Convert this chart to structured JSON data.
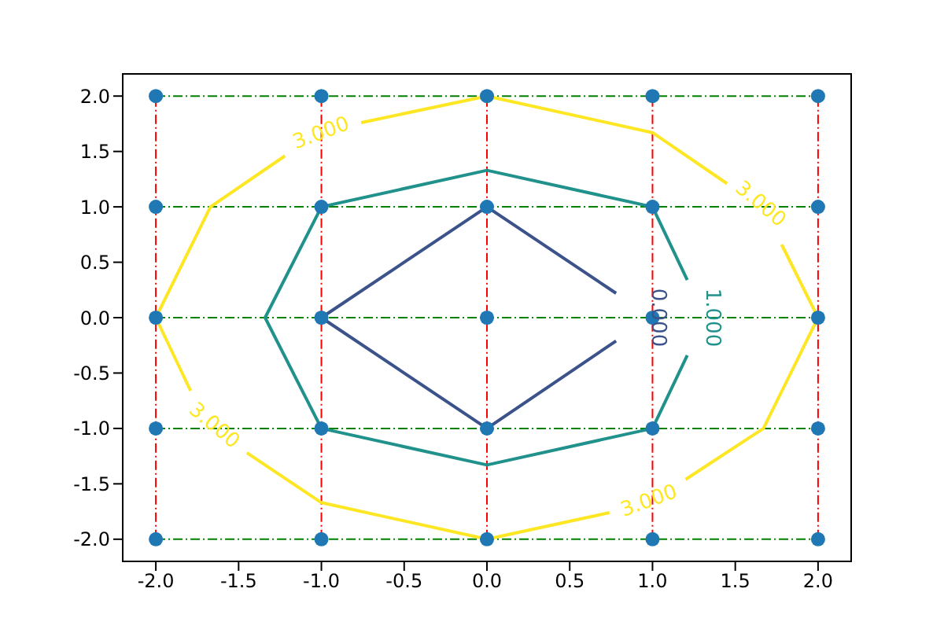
{
  "chart_data": {
    "type": "line",
    "xlim": [
      -2.2,
      2.2
    ],
    "ylim": [
      -2.2,
      2.2
    ],
    "xticks": [
      {
        "value": -2,
        "label": "-2.0"
      },
      {
        "value": -1.5,
        "label": "-1.5"
      },
      {
        "value": -1,
        "label": "-1.0"
      },
      {
        "value": -0.5,
        "label": "-0.5"
      },
      {
        "value": 0,
        "label": "0.0"
      },
      {
        "value": 0.5,
        "label": "0.5"
      },
      {
        "value": 1,
        "label": "1.0"
      },
      {
        "value": 1.5,
        "label": "1.5"
      },
      {
        "value": 2,
        "label": "2.0"
      }
    ],
    "yticks": [
      {
        "value": -2,
        "label": "-2.0"
      },
      {
        "value": -1.5,
        "label": "-1.5"
      },
      {
        "value": -1,
        "label": "-1.0"
      },
      {
        "value": -0.5,
        "label": "-0.5"
      },
      {
        "value": 0,
        "label": "0.0"
      },
      {
        "value": 0.5,
        "label": "0.5"
      },
      {
        "value": 1,
        "label": "1.0"
      },
      {
        "value": 1.5,
        "label": "1.5"
      },
      {
        "value": 2,
        "label": "2.0"
      }
    ],
    "series": [
      {
        "color": "#ff0000",
        "line_style": "dashed",
        "x": [
          -2,
          -2
        ],
        "values": [
          -2,
          2
        ]
      },
      {
        "color": "#ff0000",
        "line_style": "dashed",
        "x": [
          -1,
          -1
        ],
        "values": [
          -2,
          2
        ]
      },
      {
        "color": "#ff0000",
        "line_style": "dashed",
        "x": [
          0,
          0
        ],
        "values": [
          -2,
          2
        ]
      },
      {
        "color": "#ff0000",
        "line_style": "dashed",
        "x": [
          1,
          1
        ],
        "values": [
          -2,
          2
        ]
      },
      {
        "color": "#ff0000",
        "line_style": "dashed",
        "x": [
          2,
          2
        ],
        "values": [
          -2,
          2
        ]
      },
      {
        "color": "#008000",
        "line_style": "dashed",
        "x": [
          -2,
          2
        ],
        "values": [
          -2,
          -2
        ]
      },
      {
        "color": "#008000",
        "line_style": "dashed",
        "x": [
          -2,
          2
        ],
        "values": [
          -1,
          -1
        ]
      },
      {
        "color": "#008000",
        "line_style": "dashed",
        "x": [
          -2,
          2
        ],
        "values": [
          0,
          0
        ]
      },
      {
        "color": "#008000",
        "line_style": "dashed",
        "x": [
          -2,
          2
        ],
        "values": [
          1,
          1
        ]
      },
      {
        "color": "#008000",
        "line_style": "dashed",
        "x": [
          -2,
          2
        ],
        "values": [
          2,
          2
        ]
      },
      {
        "color": "#3b528b",
        "x": [
          0.78,
          0,
          -1,
          0,
          0.78
        ],
        "values": [
          0.22,
          1,
          0,
          -1,
          -0.21
        ]
      },
      {
        "color": "#21918c",
        "x": [
          1.21,
          1,
          0,
          -1,
          -1.34,
          -1,
          0,
          1,
          1.21
        ],
        "values": [
          0.34,
          1,
          1.33,
          1,
          0,
          -1,
          -1.33,
          -1,
          -0.34
        ]
      },
      {
        "color": "#fde725",
        "x": [
          -1.22,
          -1.67,
          -2,
          -1.79
        ],
        "values": [
          1.46,
          1,
          0,
          -0.66
        ]
      },
      {
        "color": "#fde725",
        "x": [
          -0.76,
          0,
          1,
          1.45
        ],
        "values": [
          1.76,
          2,
          1.67,
          1.21
        ]
      },
      {
        "color": "#fde725",
        "x": [
          1.78,
          2,
          1.67,
          1.2
        ],
        "values": [
          0.66,
          0,
          -1,
          -1.46
        ]
      },
      {
        "color": "#fde725",
        "x": [
          0.74,
          0,
          -1,
          -1.45
        ],
        "values": [
          -1.76,
          -2,
          -1.67,
          -1.22
        ]
      },
      {
        "type": "scatter",
        "color": "#1f77b4",
        "marker": "circle",
        "x": [
          -2,
          -1,
          0,
          1,
          2,
          -2,
          -1,
          0,
          1,
          2,
          -2,
          -1,
          0,
          1,
          2,
          -2,
          -1,
          0,
          1,
          2,
          -2,
          -1,
          0,
          1,
          2
        ],
        "values": [
          -2,
          -2,
          -2,
          -2,
          -2,
          -1,
          -1,
          -1,
          -1,
          -1,
          0,
          0,
          0,
          0,
          0,
          1,
          1,
          1,
          1,
          1,
          2,
          2,
          2,
          2,
          2
        ]
      }
    ],
    "annotations": [
      {
        "text": "3.000",
        "x": -1.0,
        "y": 1.66
      },
      {
        "text": "3.000",
        "x": 1.65,
        "y": 1.02
      },
      {
        "text": "3.000",
        "x": -1.65,
        "y": -0.98
      },
      {
        "text": "3.000",
        "x": 0.98,
        "y": -1.66
      },
      {
        "text": "0.000",
        "x": 1.03,
        "y": 0
      },
      {
        "text": "1.000",
        "x": 1.36,
        "y": 0
      }
    ]
  }
}
